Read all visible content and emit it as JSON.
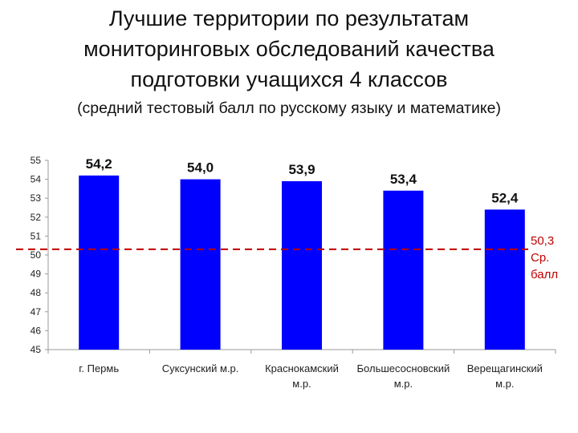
{
  "title_lines": [
    "Лучшие территории по результатам",
    "мониторинговых обследований качества",
    "подготовки учащихся 4 классов"
  ],
  "subtitle": "(средний тестовый балл по русскому языку и математике)",
  "chart_data": {
    "type": "bar",
    "categories": [
      [
        "г. Пермь"
      ],
      [
        "Суксунский  м.р."
      ],
      [
        "Краснокамский",
        "м.р."
      ],
      [
        "Большесосновский",
        "м.р."
      ],
      [
        "Верещагинский",
        "м.р."
      ]
    ],
    "values": [
      54.2,
      54.0,
      53.9,
      53.4,
      52.4
    ],
    "value_labels": [
      "54,2",
      "54,0",
      "53,9",
      "53,4",
      "52,4"
    ],
    "ylim": [
      45,
      55
    ],
    "yticks": [
      45,
      46,
      47,
      48,
      49,
      50,
      51,
      52,
      53,
      54,
      55
    ],
    "bar_color": "#0000ff",
    "gridlines": false,
    "reference_line": {
      "value": 50.3,
      "label_lines": [
        "50,3",
        "Ср.",
        "балл"
      ],
      "color": "#c00000",
      "style": "dashed"
    }
  }
}
